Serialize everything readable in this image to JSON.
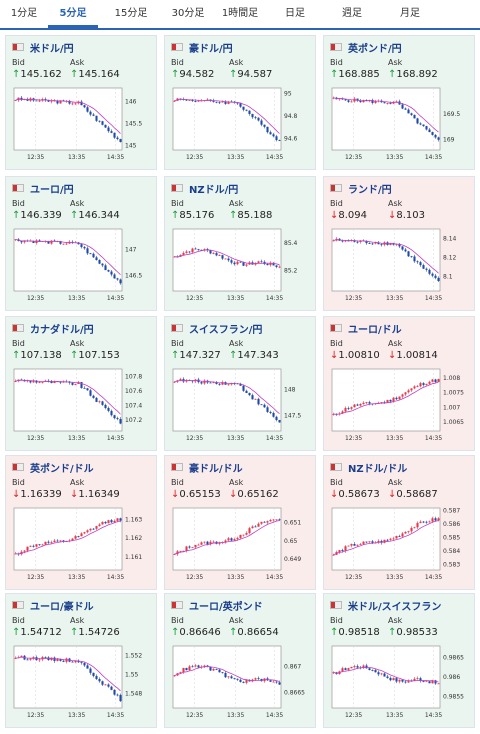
{
  "tabs": [
    {
      "label": "1分足"
    },
    {
      "label": "5分足",
      "active": true
    },
    {
      "label": "15分足"
    },
    {
      "label": "30分足"
    },
    {
      "label": "1時間足"
    },
    {
      "label": "日足"
    },
    {
      "label": "週足"
    },
    {
      "label": "月足"
    }
  ],
  "labels": {
    "bid": "Bid",
    "ask": "Ask"
  },
  "arrows": {
    "up": "↑",
    "down": "↓"
  },
  "colors": {
    "up_bg": "#e9f5ee",
    "down_bg": "#fbecec",
    "accent": "#2b63b5",
    "candle_up": "#e6394a",
    "candle_down": "#1f4aa8",
    "ma": "#c23fc4",
    "ma2": "#3fb5c4"
  },
  "pairs": [
    {
      "title": "米ドル/円",
      "bid": "145.162",
      "ask": "145.164",
      "dir": "up",
      "icon": "flag-us-jp",
      "chart_data": {
        "type": "candlestick",
        "x_ticks": [
          "12:35",
          "13:35",
          "14:35"
        ],
        "y_ticks": [
          "146",
          "145.5",
          "145"
        ],
        "ylim": [
          144.9,
          146.3
        ],
        "trend": "down"
      }
    },
    {
      "title": "豪ドル/円",
      "bid": "94.582",
      "ask": "94.587",
      "dir": "up",
      "icon": "flag-au-jp",
      "chart_data": {
        "type": "candlestick",
        "x_ticks": [
          "12:35",
          "13:35",
          "14:35"
        ],
        "y_ticks": [
          "95",
          "94.8",
          "94.6"
        ],
        "ylim": [
          94.5,
          95.05
        ],
        "trend": "down"
      }
    },
    {
      "title": "英ポンド/円",
      "bid": "168.885",
      "ask": "168.892",
      "dir": "up",
      "icon": "flag-gb-jp",
      "chart_data": {
        "type": "candlestick",
        "x_ticks": [
          "12:35",
          "13:35",
          "14:35"
        ],
        "y_ticks": [
          "169.5",
          "169"
        ],
        "ylim": [
          168.8,
          170
        ],
        "trend": "down"
      }
    },
    {
      "title": "ユーロ/円",
      "bid": "146.339",
      "ask": "146.344",
      "dir": "up",
      "icon": "flag-eu-jp",
      "chart_data": {
        "type": "candlestick",
        "x_ticks": [
          "12:35",
          "13:35",
          "14:35"
        ],
        "y_ticks": [
          "147",
          "146.5"
        ],
        "ylim": [
          146.2,
          147.4
        ],
        "trend": "down"
      }
    },
    {
      "title": "NZドル/円",
      "bid": "85.176",
      "ask": "85.188",
      "dir": "up",
      "icon": "flag-nz-jp",
      "chart_data": {
        "type": "candlestick",
        "x_ticks": [
          "12:35",
          "13:35",
          "14:35"
        ],
        "y_ticks": [
          "85.4",
          "85.2"
        ],
        "ylim": [
          85.05,
          85.5
        ],
        "trend": "flat-down"
      }
    },
    {
      "title": "ランド/円",
      "bid": "8.094",
      "ask": "8.103",
      "dir": "down",
      "icon": "flag-za-jp",
      "chart_data": {
        "type": "candlestick",
        "x_ticks": [
          "12:35",
          "13:35",
          "14:35"
        ],
        "y_ticks": [
          "8.14",
          "8.12",
          "8.1"
        ],
        "ylim": [
          8.085,
          8.15
        ],
        "trend": "down"
      }
    },
    {
      "title": "カナダドル/円",
      "bid": "107.138",
      "ask": "107.153",
      "dir": "up",
      "icon": "flag-ca-jp",
      "chart_data": {
        "type": "candlestick",
        "x_ticks": [
          "12:35",
          "13:35",
          "14:35"
        ],
        "y_ticks": [
          "107.8",
          "107.6",
          "107.4",
          "107.2"
        ],
        "ylim": [
          107.05,
          107.9
        ],
        "trend": "down"
      }
    },
    {
      "title": "スイスフラン/円",
      "bid": "147.327",
      "ask": "147.343",
      "dir": "up",
      "icon": "flag-ch-jp",
      "chart_data": {
        "type": "candlestick",
        "x_ticks": [
          "12:35",
          "13:35",
          "14:35"
        ],
        "y_ticks": [
          "148",
          "147.5"
        ],
        "ylim": [
          147.2,
          148.4
        ],
        "trend": "down"
      }
    },
    {
      "title": "ユーロ/ドル",
      "bid": "1.00810",
      "ask": "1.00814",
      "dir": "down",
      "icon": "flag-eu-us",
      "chart_data": {
        "type": "candlestick",
        "x_ticks": [
          "12:35",
          "13:35",
          "14:35"
        ],
        "y_ticks": [
          "1.008",
          "1.0075",
          "1.007",
          "1.0065"
        ],
        "ylim": [
          1.0062,
          1.0083
        ],
        "trend": "up"
      }
    },
    {
      "title": "英ポンド/ドル",
      "bid": "1.16339",
      "ask": "1.16349",
      "dir": "down",
      "icon": "flag-gb-us",
      "chart_data": {
        "type": "candlestick",
        "x_ticks": [
          "12:35",
          "13:35",
          "14:35"
        ],
        "y_ticks": [
          "1.163",
          "1.162",
          "1.161"
        ],
        "ylim": [
          1.1603,
          1.1636
        ],
        "trend": "up"
      }
    },
    {
      "title": "豪ドル/ドル",
      "bid": "0.65153",
      "ask": "0.65162",
      "dir": "down",
      "icon": "flag-au-us",
      "chart_data": {
        "type": "candlestick",
        "x_ticks": [
          "12:35",
          "13:35",
          "14:35"
        ],
        "y_ticks": [
          "0.651",
          "0.65",
          "0.649"
        ],
        "ylim": [
          0.6484,
          0.6518
        ],
        "trend": "up"
      }
    },
    {
      "title": "NZドル/ドル",
      "bid": "0.58673",
      "ask": "0.58687",
      "dir": "down",
      "icon": "flag-nz-us",
      "chart_data": {
        "type": "candlestick",
        "x_ticks": [
          "12:35",
          "13:35",
          "14:35"
        ],
        "y_ticks": [
          "0.587",
          "0.586",
          "0.585",
          "0.584",
          "0.583"
        ],
        "ylim": [
          0.5826,
          0.5872
        ],
        "trend": "up"
      }
    },
    {
      "title": "ユーロ/豪ドル",
      "bid": "1.54712",
      "ask": "1.54726",
      "dir": "up",
      "icon": "flag-eu-au",
      "chart_data": {
        "type": "candlestick",
        "x_ticks": [
          "12:35",
          "13:35",
          "14:35"
        ],
        "y_ticks": [
          "1.552",
          "1.55",
          "1.548"
        ],
        "ylim": [
          1.5465,
          1.553
        ],
        "trend": "down"
      }
    },
    {
      "title": "ユーロ/英ポンド",
      "bid": "0.86646",
      "ask": "0.86654",
      "dir": "up",
      "icon": "flag-eu-gb",
      "chart_data": {
        "type": "candlestick",
        "x_ticks": [
          "12:35",
          "13:35",
          "14:35"
        ],
        "y_ticks": [
          "0.867",
          "0.8665"
        ],
        "ylim": [
          0.8662,
          0.8674
        ],
        "trend": "flat-down"
      }
    },
    {
      "title": "米ドル/スイスフラン",
      "bid": "0.98518",
      "ask": "0.98533",
      "dir": "up",
      "icon": "flag-us-ch",
      "chart_data": {
        "type": "candlestick",
        "x_ticks": [
          "12:35",
          "13:35",
          "14:35"
        ],
        "y_ticks": [
          "0.9865",
          "0.986",
          "0.9855"
        ],
        "ylim": [
          0.9852,
          0.9868
        ],
        "trend": "flat-down"
      }
    }
  ]
}
